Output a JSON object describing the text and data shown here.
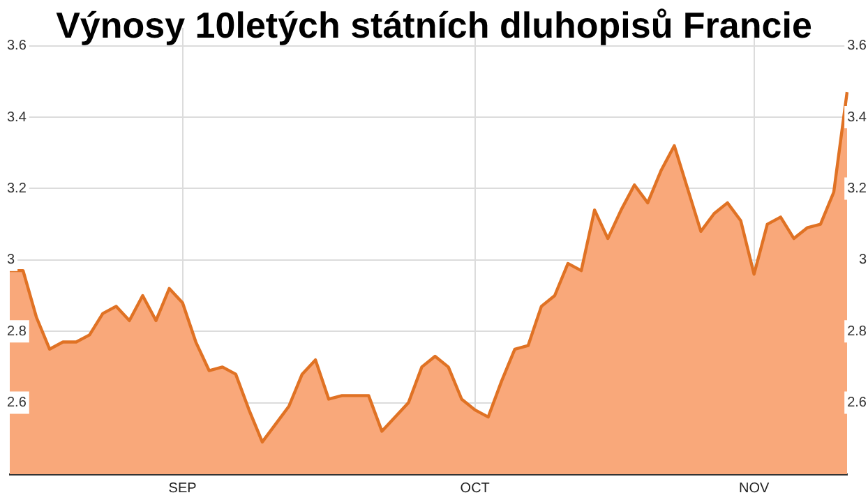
{
  "chart_data": {
    "type": "area",
    "title": "Výnosy 10letých státních dluhopisů Francie",
    "categories": [
      null,
      null,
      null,
      null,
      null,
      null,
      null,
      null,
      null,
      null,
      null,
      null,
      null,
      "SEP",
      null,
      null,
      null,
      null,
      null,
      null,
      null,
      null,
      null,
      null,
      null,
      null,
      null,
      null,
      null,
      null,
      null,
      null,
      null,
      null,
      null,
      "OCT",
      null,
      null,
      null,
      null,
      null,
      null,
      null,
      null,
      null,
      null,
      null,
      null,
      null,
      null,
      null,
      null,
      null,
      null,
      null,
      null,
      "NOV",
      null,
      null,
      null,
      null,
      null,
      null,
      null
    ],
    "series": [
      {
        "color": "#e07224",
        "values": [
          2.97,
          2.97,
          2.84,
          2.75,
          2.77,
          2.77,
          2.79,
          2.85,
          2.87,
          2.83,
          2.9,
          2.83,
          2.92,
          2.88,
          2.77,
          2.69,
          2.7,
          2.68,
          2.58,
          2.49,
          2.54,
          2.59,
          2.68,
          2.72,
          2.61,
          2.62,
          2.62,
          2.62,
          2.52,
          2.56,
          2.6,
          2.7,
          2.73,
          2.7,
          2.61,
          2.58,
          2.56,
          2.66,
          2.75,
          2.76,
          2.87,
          2.9,
          2.99,
          2.97,
          3.14,
          3.06,
          3.14,
          3.21,
          3.16,
          3.25,
          3.32,
          3.2,
          3.08,
          3.13,
          3.16,
          3.11,
          2.96,
          3.1,
          3.12,
          3.06,
          3.09,
          3.1,
          3.19,
          3.47
        ]
      }
    ],
    "ylim": [
      2.4,
      3.65
    ],
    "yticks": [
      2.6,
      2.8,
      3,
      3.2,
      3.4,
      3.6
    ],
    "y2lim": [
      2.4,
      3.65
    ],
    "y2ticks": [
      2.6,
      2.8,
      3,
      3.2,
      3.4,
      3.6
    ],
    "grid": true,
    "legend": false
  }
}
